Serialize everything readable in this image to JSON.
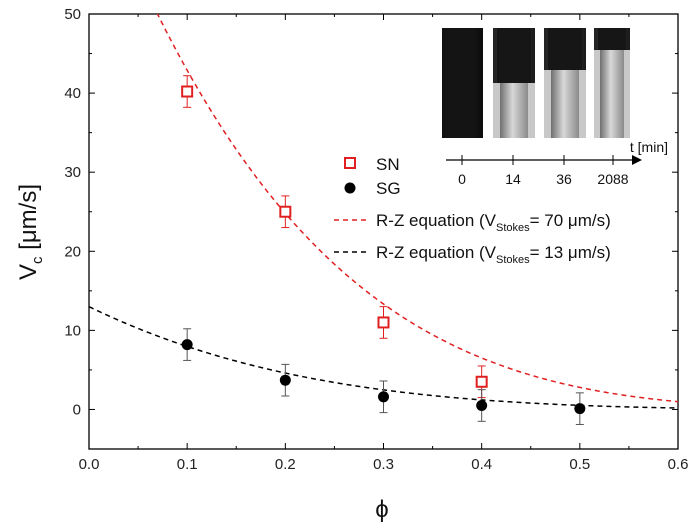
{
  "chart_data": {
    "type": "scatter",
    "xlabel": "ϕ",
    "ylabel": "V",
    "ylabel_sub": "c",
    "ylabel_unit": " [μm/s]",
    "xlim": [
      0.0,
      0.6
    ],
    "ylim": [
      -5,
      50
    ],
    "x_ticks": [
      0.0,
      0.1,
      0.2,
      0.3,
      0.4,
      0.5,
      0.6
    ],
    "x_tick_labels": [
      "0.0",
      "0.1",
      "0.2",
      "0.3",
      "0.4",
      "0.5",
      "0.6"
    ],
    "y_ticks": [
      0,
      10,
      20,
      30,
      40,
      50
    ],
    "y_tick_labels": [
      "0",
      "10",
      "20",
      "30",
      "40",
      "50"
    ],
    "series": [
      {
        "name": "SN",
        "marker": "open-square",
        "color": "#e02020",
        "x": [
          0.1,
          0.2,
          0.3,
          0.4
        ],
        "y": [
          40.2,
          25.0,
          11.0,
          3.5
        ],
        "err": [
          2.0,
          2.0,
          2.0,
          2.0
        ]
      },
      {
        "name": "SG",
        "marker": "filled-circle",
        "color": "#000000",
        "x": [
          0.1,
          0.2,
          0.3,
          0.4,
          0.5
        ],
        "y": [
          8.2,
          3.7,
          1.6,
          0.5,
          0.1
        ],
        "err": [
          2.0,
          2.0,
          2.0,
          2.0,
          2.0
        ]
      }
    ],
    "fits": [
      {
        "label_main": "R-Z equation (V",
        "label_sub": "Stokes",
        "label_tail": "= 70 μm/s)",
        "v_stokes": 70,
        "exponent": 4.65,
        "color": "#e02020",
        "style": "dashed"
      },
      {
        "label_main": "R-Z equation (V",
        "label_sub": "Stokes",
        "label_tail": "= 13 μm/s)",
        "v_stokes": 13,
        "exponent": 4.65,
        "color": "#000000",
        "style": "dashed"
      }
    ],
    "legend_position": "center-right",
    "grid": false,
    "inset": {
      "axis_label": "t [min]",
      "time_labels": [
        "0",
        "14",
        "36",
        "2088"
      ]
    }
  }
}
